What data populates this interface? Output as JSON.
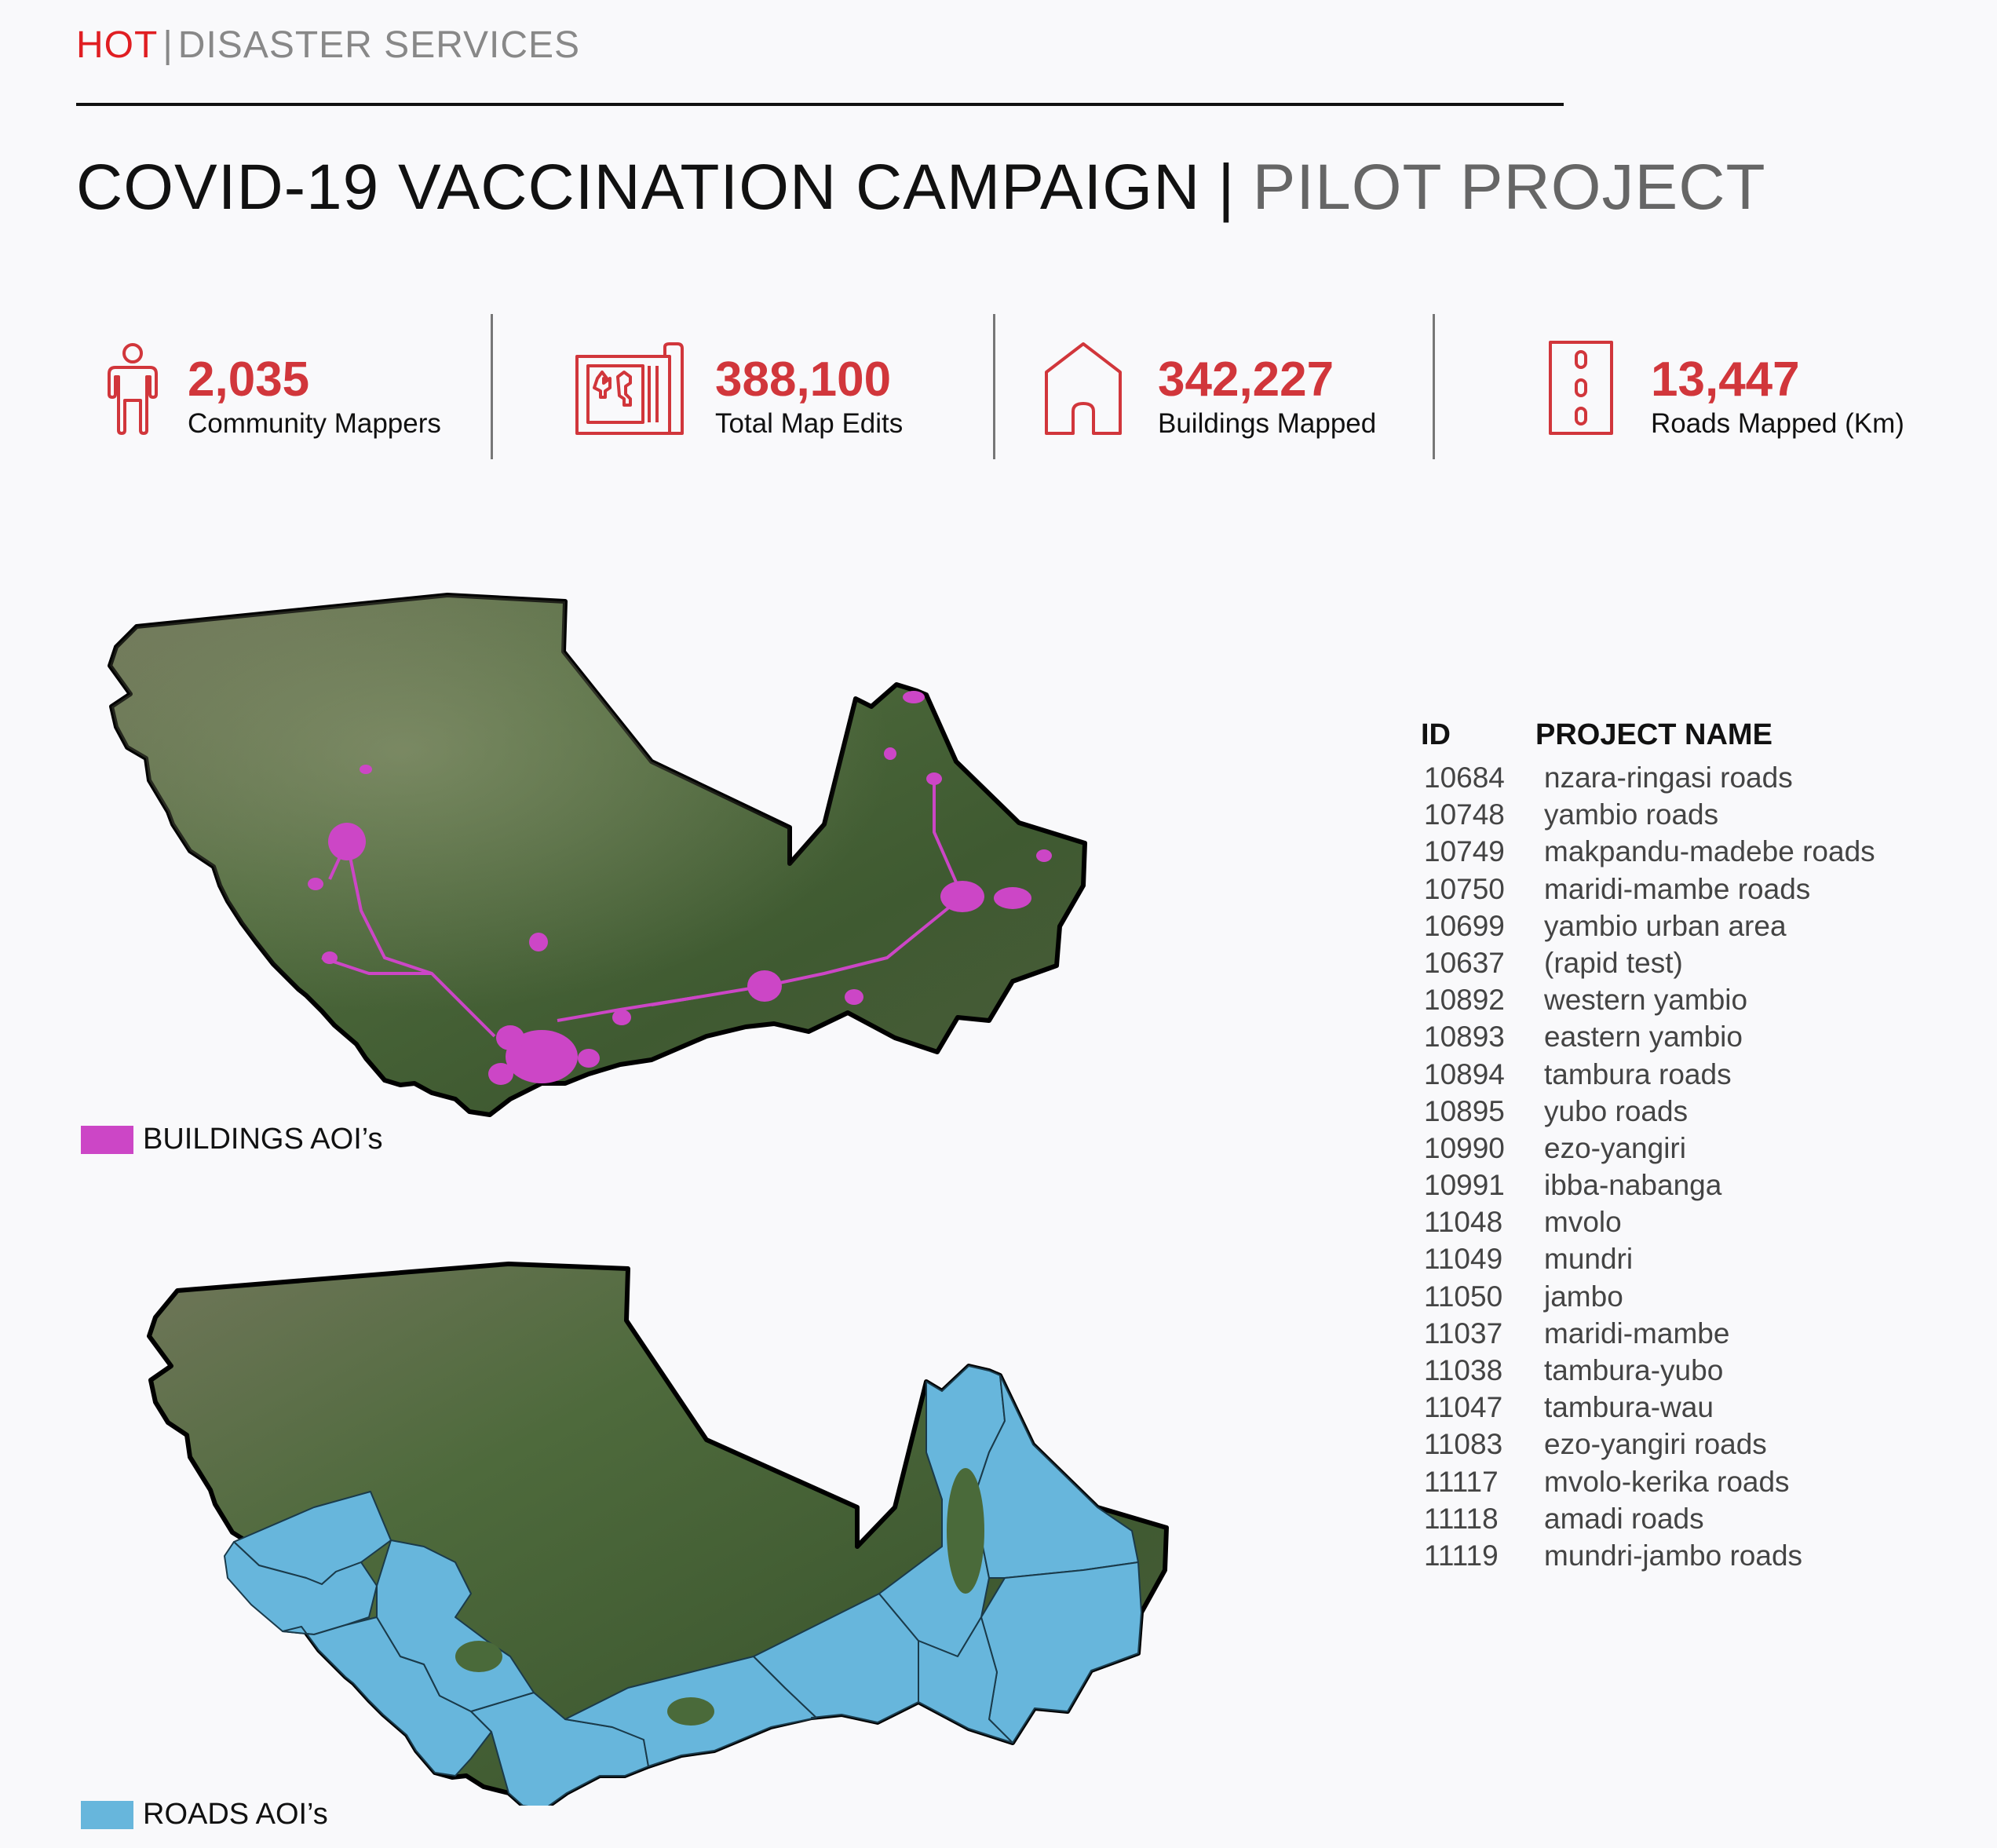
{
  "header": {
    "org": "HOT",
    "separator": "|",
    "unit": "DISASTER SERVICES"
  },
  "title": {
    "main": "COVID-19 VACCINATION CAMPAIGN",
    "separator": "|",
    "sub": "PILOT PROJECT"
  },
  "stats": [
    {
      "icon": "person-icon",
      "value": "2,035",
      "label": "Community Mappers"
    },
    {
      "icon": "map-edits-icon",
      "value": "388,100",
      "label": "Total Map Edits"
    },
    {
      "icon": "house-icon",
      "value": "342,227",
      "label": "Buildings Mapped"
    },
    {
      "icon": "road-icon",
      "value": "13,447",
      "label": "Roads Mapped (Km)"
    }
  ],
  "legends": {
    "buildings": "BUILDINGS AOI’s",
    "roads": "ROADS AOI’s"
  },
  "colors": {
    "accent": "#d1363b",
    "hot_red": "#e01e22",
    "buildings_aoi": "#cc46c6",
    "roads_aoi": "#67b6dc"
  },
  "projects": {
    "headers": {
      "id": "ID",
      "name": "PROJECT NAME"
    },
    "rows": [
      {
        "id": "10684",
        "name": "nzara-ringasi roads"
      },
      {
        "id": "10748",
        "name": "yambio roads"
      },
      {
        "id": "10749",
        "name": "makpandu-madebe roads"
      },
      {
        "id": "10750",
        "name": "maridi-mambe roads"
      },
      {
        "id": "10699",
        "name": "yambio urban area"
      },
      {
        "id": "10637",
        "name": "(rapid test)"
      },
      {
        "id": "10892",
        "name": "western yambio"
      },
      {
        "id": "10893",
        "name": "eastern yambio"
      },
      {
        "id": "10894",
        "name": "tambura roads"
      },
      {
        "id": "10895",
        "name": "yubo roads"
      },
      {
        "id": "10990",
        "name": "ezo-yangiri"
      },
      {
        "id": "10991",
        "name": "ibba-nabanga"
      },
      {
        "id": "11048",
        "name": "mvolo"
      },
      {
        "id": "11049",
        "name": "mundri"
      },
      {
        "id": "11050",
        "name": "jambo"
      },
      {
        "id": "11037",
        "name": "maridi-mambe"
      },
      {
        "id": "11038",
        "name": "tambura-yubo"
      },
      {
        "id": "11047",
        "name": "tambura-wau"
      },
      {
        "id": "11083",
        "name": "ezo-yangiri roads"
      },
      {
        "id": "11117",
        "name": "mvolo-kerika roads"
      },
      {
        "id": "11118",
        "name": "amadi roads"
      },
      {
        "id": "11119",
        "name": "mundri-jambo roads"
      }
    ]
  }
}
